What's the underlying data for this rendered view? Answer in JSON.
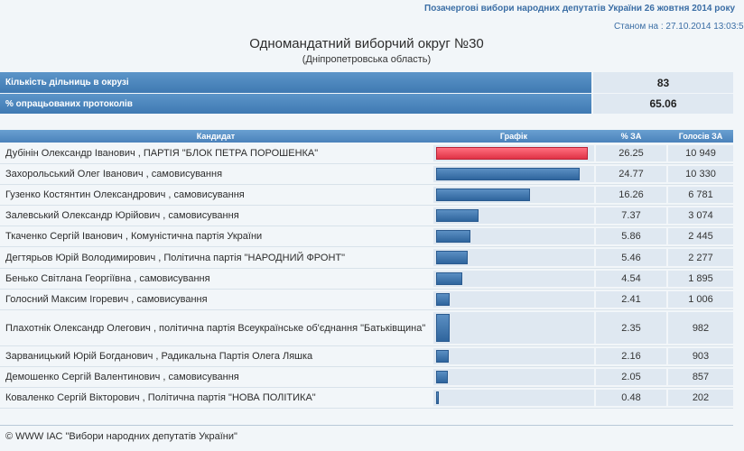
{
  "header": {
    "election_title": "Позачергові вибори народних депутатів України 26 жовтня 2014 року",
    "status_date": "Станом на : 27.10.2014 13:03:5",
    "district_title": "Одномандатний виборчий округ №30",
    "district_region": "(Дніпропетровська область)"
  },
  "summary": {
    "stations_label": "Кількість дільниць в окрузі",
    "stations_value": "83",
    "processed_label": "% опрацьованих протоколів",
    "processed_value": "65.06"
  },
  "table": {
    "columns": [
      "Кандидат",
      "Графік",
      "% ЗА",
      "Голосів ЗА"
    ],
    "rows": [
      {
        "name": "Дубінін Олександр Іванович , ПАРТІЯ \"БЛОК ПЕТРА ПОРОШЕНКА\"",
        "pct": "26.25",
        "votes": "10 949",
        "share": 26.25
      },
      {
        "name": "Захорольський Олег Іванович , самовисування",
        "pct": "24.77",
        "votes": "10 330",
        "share": 24.77
      },
      {
        "name": "Гузенко Костянтин Олександрович , самовисування",
        "pct": "16.26",
        "votes": "6 781",
        "share": 16.26
      },
      {
        "name": "Залевський Олександр Юрійович , самовисування",
        "pct": "7.37",
        "votes": "3 074",
        "share": 7.37
      },
      {
        "name": "Ткаченко Сергій Іванович , Комуністична партія України",
        "pct": "5.86",
        "votes": "2 445",
        "share": 5.86
      },
      {
        "name": "Дегтярьов Юрій Володимирович , Політична партія \"НАРОДНИЙ ФРОНТ\"",
        "pct": "5.46",
        "votes": "2 277",
        "share": 5.46
      },
      {
        "name": "Бенько Світлана Георгіївна , самовисування",
        "pct": "4.54",
        "votes": "1 895",
        "share": 4.54
      },
      {
        "name": "Голосний Максим Ігоревич , самовисування",
        "pct": "2.41",
        "votes": "1 006",
        "share": 2.41
      },
      {
        "name": "Плахотнік Олександр Олегович , політична партія Всеукраїнське об'єднання \"Батьківщина\"",
        "pct": "2.35",
        "votes": "982",
        "share": 2.35
      },
      {
        "name": "Зарваницький Юрій Богданович , Радикальна Партія Олега Ляшка",
        "pct": "2.16",
        "votes": "903",
        "share": 2.16
      },
      {
        "name": "Демошенко Сергій Валентинович , самовисування",
        "pct": "2.05",
        "votes": "857",
        "share": 2.05
      },
      {
        "name": "Коваленко Сергій Вікторович , Політична партія \"НОВА ПОЛІТИКА\"",
        "pct": "0.48",
        "votes": "202",
        "share": 0.48
      }
    ]
  },
  "footer": {
    "copyright": "© WWW ІАС \"Вибори народних депутатів України\""
  },
  "colors": {
    "leader_bar": "#e03246",
    "bar": "#2f659d",
    "header_bg": "#4a82bb"
  }
}
